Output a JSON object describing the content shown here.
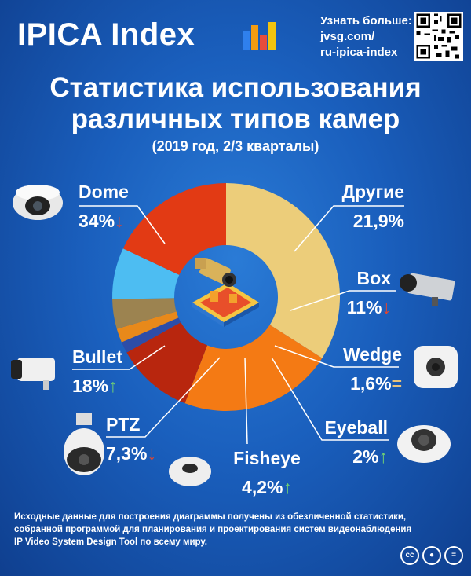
{
  "brand": {
    "name": "IPICA Index",
    "learn_more": "Узнать больше:",
    "link_line1": "jvsg.com/",
    "link_line2": "ru-ipica-index",
    "logo_colors": [
      "#2f80ed",
      "#f39c12",
      "#e74c3c",
      "#f1c40f"
    ]
  },
  "header": {
    "title_line1": "Статистика использования",
    "title_line2": "различных типов камер",
    "period": "(2019 год, 2/3 кварталы)"
  },
  "chart_data": {
    "type": "pie",
    "donut": true,
    "slices": [
      {
        "name": "Dome",
        "value": 34,
        "label": "34%",
        "trend": "down",
        "color": "#eccd7a"
      },
      {
        "name": "Другие",
        "value": 21.9,
        "label": "21,9%",
        "trend": "",
        "color": "#f47a14"
      },
      {
        "name": "Box",
        "value": 11,
        "label": "11%",
        "trend": "down",
        "color": "#b8260e"
      },
      {
        "name": "Wedge",
        "value": 1.6,
        "label": "1,6%",
        "trend": "equal",
        "color": "#2d4da8"
      },
      {
        "name": "Eyeball",
        "value": 2,
        "label": "2%",
        "trend": "up",
        "color": "#e8891a"
      },
      {
        "name": "Fisheye",
        "value": 4.2,
        "label": "4,2%",
        "trend": "up",
        "color": "#9c8350"
      },
      {
        "name": "PTZ",
        "value": 7.3,
        "label": "7,3%",
        "trend": "down",
        "color": "#4dbdf2"
      },
      {
        "name": "Bullet",
        "value": 18,
        "label": "18%",
        "trend": "up",
        "color": "#e23a14"
      }
    ],
    "trend_colors": {
      "up": "#6fcf74",
      "down": "#e6452c",
      "equal": "#e8c27a"
    }
  },
  "icons": {
    "dome": "dome-camera-icon",
    "box": "box-camera-icon",
    "wedge": "wedge-camera-icon",
    "eyeball": "eyeball-camera-icon",
    "fisheye": "fisheye-camera-icon",
    "ptz": "ptz-camera-icon",
    "bullet": "bullet-camera-icon",
    "center": "camera-building-icon"
  },
  "footer": {
    "line1": "Исходные данные для построения диаграммы получены из обезличенной статистики,",
    "line2": "собранной программой для планирования и проектирования систем видеонаблюдения",
    "line3": "IP Video System Design Tool по всему миру."
  }
}
